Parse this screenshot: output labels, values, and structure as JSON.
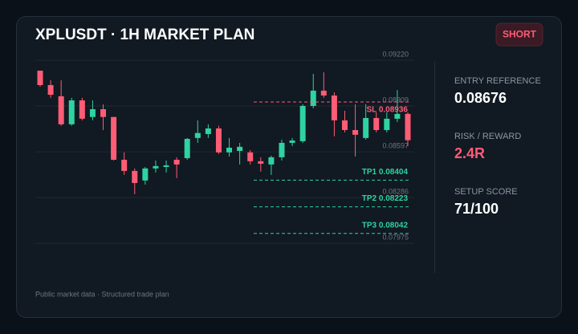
{
  "chart_data": {
    "type": "candlestick",
    "title": "XPLUSDT · 1H MARKET PLAN",
    "badge": "SHORT",
    "up_color": "#2ed3a1",
    "down_color": "#ff5c75",
    "grid": true,
    "open": [
      0.09149,
      0.09051,
      0.08975,
      0.08784,
      0.08947,
      0.08834,
      0.08887,
      0.08834,
      0.08543,
      0.08467,
      0.08402,
      0.08484,
      0.08494,
      0.08543,
      0.08554,
      0.08691,
      0.08718,
      0.08756,
      0.08593,
      0.08603,
      0.08593,
      0.08533,
      0.08511,
      0.0856,
      0.08658,
      0.08669,
      0.08909,
      0.09013,
      0.0898,
      0.08811,
      0.08745,
      0.08691,
      0.08827,
      0.08745,
      0.08822,
      0.08855
    ],
    "high": [
      0.09149,
      0.09084,
      0.09084,
      0.08964,
      0.08964,
      0.08947,
      0.0892,
      0.08834,
      0.08593,
      0.08484,
      0.08494,
      0.08538,
      0.08538,
      0.0856,
      0.08691,
      0.08811,
      0.08784,
      0.08774,
      0.08691,
      0.08658,
      0.08609,
      0.0856,
      0.08571,
      0.0868,
      0.08691,
      0.0892,
      0.09127,
      0.09138,
      0.09002,
      0.08876,
      0.0892,
      0.0892,
      0.08865,
      0.08865,
      0.09018,
      0.08865
    ],
    "low": [
      0.0904,
      0.08964,
      0.08774,
      0.08774,
      0.08811,
      0.08811,
      0.08745,
      0.08538,
      0.0844,
      0.08309,
      0.08374,
      0.08456,
      0.08456,
      0.08418,
      0.08543,
      0.08658,
      0.08691,
      0.08582,
      0.08565,
      0.08511,
      0.08511,
      0.08462,
      0.0844,
      0.08538,
      0.08636,
      0.08658,
      0.08893,
      0.08964,
      0.08702,
      0.08729,
      0.08565,
      0.0868,
      0.08729,
      0.08729,
      0.088,
      0.08636
    ],
    "close": [
      0.09051,
      0.08985,
      0.08784,
      0.08947,
      0.08822,
      0.08887,
      0.08834,
      0.08543,
      0.08467,
      0.08385,
      0.08484,
      0.085,
      0.08505,
      0.08511,
      0.08685,
      0.08725,
      0.08756,
      0.08593,
      0.08625,
      0.08631,
      0.08533,
      0.08516,
      0.0856,
      0.08658,
      0.08674,
      0.08909,
      0.09013,
      0.0898,
      0.08811,
      0.08745,
      0.08713,
      0.08827,
      0.08745,
      0.08822,
      0.08855,
      0.08676
    ],
    "ylim": [
      0.07975,
      0.0922
    ],
    "yticks": [
      0.07975,
      0.08286,
      0.08597,
      0.08909,
      {
        "value": 0.0922,
        "label": "0.09220"
      }
    ],
    "levels": [
      {
        "label": "SL 0.08936",
        "value": 0.08936,
        "color": "#ff5c75"
      },
      {
        "label": "TP1 0.08404",
        "value": 0.08404,
        "color": "#2ed3a1"
      },
      {
        "label": "TP2 0.08223",
        "value": 0.08223,
        "color": "#2ed3a1"
      },
      {
        "label": "TP3 0.08042",
        "value": 0.08042,
        "color": "#2ed3a1"
      }
    ]
  },
  "stats": [
    {
      "label": "ENTRY REFERENCE",
      "value": "0.08676",
      "color": "#ffffff"
    },
    {
      "label": "RISK / REWARD",
      "value": "2.4R",
      "color": "#ff5c75"
    },
    {
      "label": "SETUP SCORE",
      "value": "71/100",
      "color": "#ffffff"
    }
  ],
  "footer": "Public market data · Structured trade plan"
}
